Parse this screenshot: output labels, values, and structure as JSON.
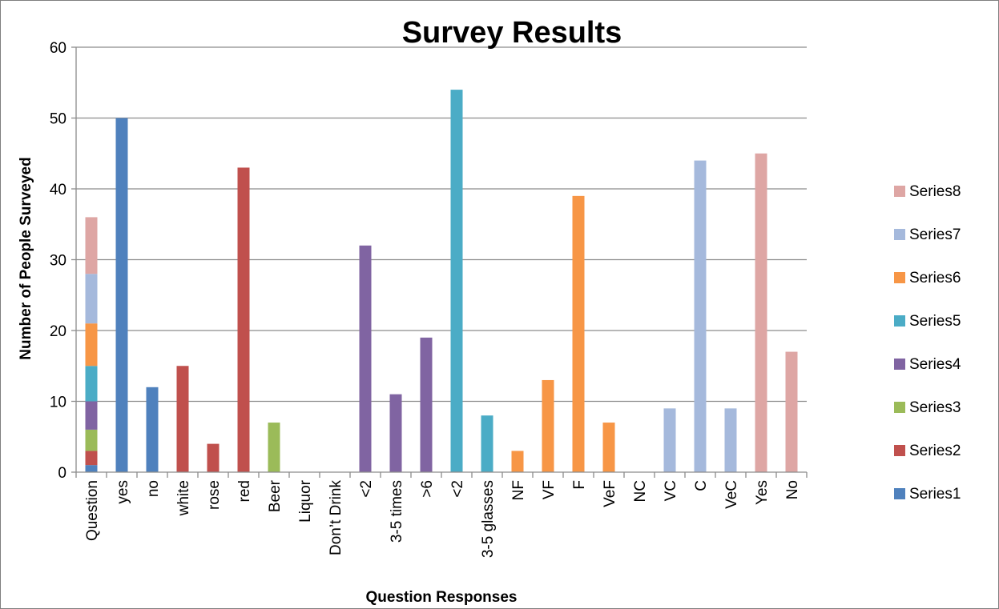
{
  "chart_data": {
    "type": "bar",
    "title": "Survey Results",
    "xlabel": "Question Responses",
    "ylabel": "Number of People Surveyed",
    "ylim": [
      0,
      60
    ],
    "yticks": [
      0,
      10,
      20,
      30,
      40,
      50,
      60
    ],
    "grid": true,
    "legend_position": "right",
    "categories": [
      "Question",
      "yes",
      "no",
      "white",
      "rose",
      "red",
      "Beer",
      "Liquor",
      "Don’t Drink",
      "<2",
      "3-5 times",
      ">6",
      "<2",
      "3-5 glasses",
      "NF",
      "VF",
      "F",
      "VeF",
      "NC",
      "VC",
      "C",
      "VeC",
      "Yes",
      "No"
    ],
    "series": [
      {
        "name": "Series1",
        "color": "#4f81bd",
        "values": [
          1,
          50,
          12,
          0,
          0,
          0,
          0,
          0,
          0,
          0,
          0,
          0,
          0,
          0,
          0,
          0,
          0,
          0,
          0,
          0,
          0,
          0,
          0,
          0
        ]
      },
      {
        "name": "Series2",
        "color": "#c0504d",
        "values": [
          2,
          0,
          0,
          15,
          4,
          43,
          0,
          0,
          0,
          0,
          0,
          0,
          0,
          0,
          0,
          0,
          0,
          0,
          0,
          0,
          0,
          0,
          0,
          0
        ]
      },
      {
        "name": "Series3",
        "color": "#9bbb59",
        "values": [
          3,
          0,
          0,
          0,
          0,
          0,
          7,
          0,
          0,
          0,
          0,
          0,
          0,
          0,
          0,
          0,
          0,
          0,
          0,
          0,
          0,
          0,
          0,
          0
        ]
      },
      {
        "name": "Series4",
        "color": "#8064a2",
        "values": [
          4,
          0,
          0,
          0,
          0,
          0,
          0,
          0,
          0,
          32,
          11,
          19,
          0,
          0,
          0,
          0,
          0,
          0,
          0,
          0,
          0,
          0,
          0,
          0
        ]
      },
      {
        "name": "Series5",
        "color": "#4bacc6",
        "values": [
          5,
          0,
          0,
          0,
          0,
          0,
          0,
          0,
          0,
          0,
          0,
          0,
          54,
          8,
          0,
          0,
          0,
          0,
          0,
          0,
          0,
          0,
          0,
          0
        ]
      },
      {
        "name": "Series6",
        "color": "#f79646",
        "values": [
          6,
          0,
          0,
          0,
          0,
          0,
          0,
          0,
          0,
          0,
          0,
          0,
          0,
          0,
          3,
          13,
          39,
          7,
          0,
          0,
          0,
          0,
          0,
          0
        ]
      },
      {
        "name": "Series7",
        "color": "#a5b9dc",
        "values": [
          7,
          0,
          0,
          0,
          0,
          0,
          0,
          0,
          0,
          0,
          0,
          0,
          0,
          0,
          0,
          0,
          0,
          0,
          0,
          9,
          44,
          9,
          0,
          0
        ]
      },
      {
        "name": "Series8",
        "color": "#dea6a4",
        "values": [
          8,
          0,
          0,
          0,
          0,
          0,
          0,
          0,
          0,
          0,
          0,
          0,
          0,
          0,
          0,
          0,
          0,
          0,
          0,
          0,
          0,
          0,
          45,
          17
        ]
      }
    ]
  }
}
